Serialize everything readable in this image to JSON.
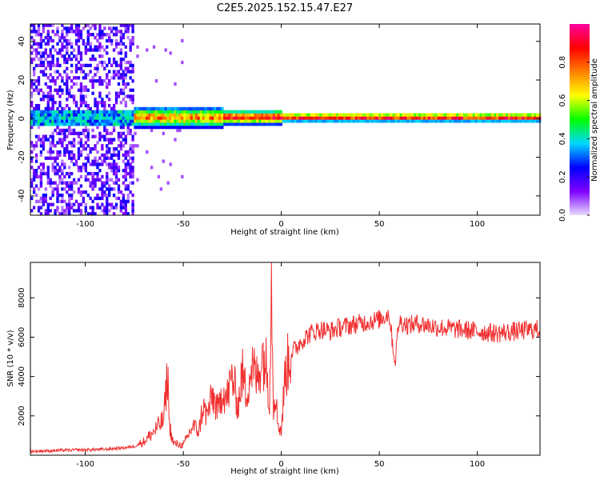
{
  "title": "C2E5.2025.152.15.47.E27",
  "chart_data": [
    {
      "type": "heatmap",
      "xlabel": "Height of straight line (km)",
      "ylabel": "Frequency (Hz)",
      "xlim": [
        -128,
        132
      ],
      "ylim": [
        -50,
        49
      ],
      "x_ticks": [
        -100,
        -50,
        0,
        50,
        100
      ],
      "y_ticks": [
        -40,
        -20,
        0,
        20,
        40
      ],
      "grid": false,
      "colorbar": {
        "label": "Normalized spectral amplitude",
        "range": [
          0.0,
          1.0
        ],
        "ticks": [
          0.0,
          0.2,
          0.4,
          0.6,
          0.8
        ],
        "colormap": [
          "#e8dcff",
          "#7f00ff",
          "#0000ff",
          "#00d8ff",
          "#00ff00",
          "#ffff00",
          "#ff8000",
          "#ff0000",
          "#ff00a0"
        ]
      },
      "features": {
        "noise_region_x": [
          -128,
          -76
        ],
        "noise_amplitude": 0.15,
        "narrowband_center_hz": 0,
        "narrowband_amplitude": 0.9
      }
    },
    {
      "type": "line",
      "xlabel": "Height of straight line (km)",
      "ylabel": "SNR (10 * v/v)",
      "xlim": [
        -128,
        132
      ],
      "ylim": [
        0,
        9800
      ],
      "x_ticks": [
        -100,
        -50,
        0,
        50,
        100
      ],
      "y_ticks": [
        2000,
        4000,
        6000,
        8000
      ],
      "grid": false,
      "series": [
        {
          "color": "#f03030",
          "x": [
            -128,
            -110,
            -90,
            -80,
            -75,
            -70,
            -65,
            -60,
            -58,
            -57,
            -56,
            -55,
            -50,
            -45,
            -42,
            -40,
            -38,
            -35,
            -32,
            -30,
            -28,
            -25,
            -22,
            -20,
            -18,
            -15,
            -12,
            -10,
            -8,
            -6,
            -5,
            -4,
            -3,
            -2,
            -1,
            0,
            2,
            5,
            8,
            10,
            15,
            20,
            25,
            30,
            35,
            40,
            45,
            50,
            55,
            58,
            60,
            65,
            70,
            75,
            80,
            90,
            100,
            110,
            120,
            132
          ],
          "y": [
            200,
            250,
            300,
            380,
            450,
            700,
            1200,
            1800,
            4200,
            1500,
            1000,
            600,
            500,
            1500,
            1200,
            2500,
            2000,
            3000,
            2200,
            3500,
            2800,
            4000,
            2500,
            4200,
            3200,
            4500,
            3800,
            5200,
            4800,
            3000,
            9500,
            2500,
            3500,
            1800,
            1500,
            1200,
            4200,
            5200,
            5500,
            5800,
            6200,
            6400,
            6300,
            6500,
            6600,
            6700,
            6800,
            6900,
            7200,
            4700,
            6800,
            6600,
            6700,
            6600,
            6500,
            6400,
            6300,
            6200,
            6300,
            6400
          ]
        }
      ]
    }
  ]
}
